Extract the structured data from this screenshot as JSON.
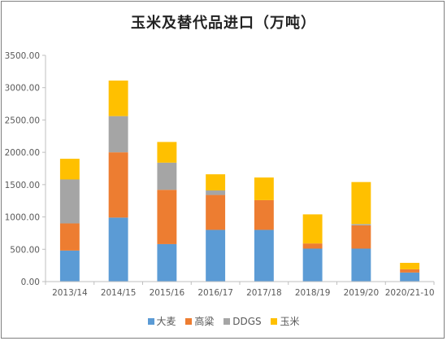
{
  "chart_data": {
    "type": "bar",
    "stacked": true,
    "title": "玉米及替代品进口（万吨）",
    "categories": [
      "2013/14",
      "2014/15",
      "2015/16",
      "2016/17",
      "2017/18",
      "2018/19",
      "2019/20",
      "2020/21-10"
    ],
    "series": [
      {
        "name": "大麦",
        "color": "#5b9bd5",
        "values": [
          480,
          990,
          580,
          800,
          800,
          510,
          510,
          140
        ]
      },
      {
        "name": "高粱",
        "color": "#ed7d31",
        "values": [
          420,
          1010,
          840,
          540,
          460,
          80,
          360,
          50
        ]
      },
      {
        "name": "DDGS",
        "color": "#a5a5a5",
        "values": [
          680,
          560,
          420,
          70,
          0,
          0,
          20,
          0
        ]
      },
      {
        "name": "玉米",
        "color": "#ffc000",
        "values": [
          320,
          550,
          320,
          250,
          350,
          450,
          650,
          100
        ]
      }
    ],
    "ylim": [
      0,
      3500
    ],
    "yticks": [
      "0.00",
      "500.00",
      "1000.00",
      "1500.00",
      "2000.00",
      "2500.00",
      "3000.00",
      "3500.00"
    ],
    "grid": false,
    "legend_position": "bottom",
    "xlabel": "",
    "ylabel": ""
  }
}
